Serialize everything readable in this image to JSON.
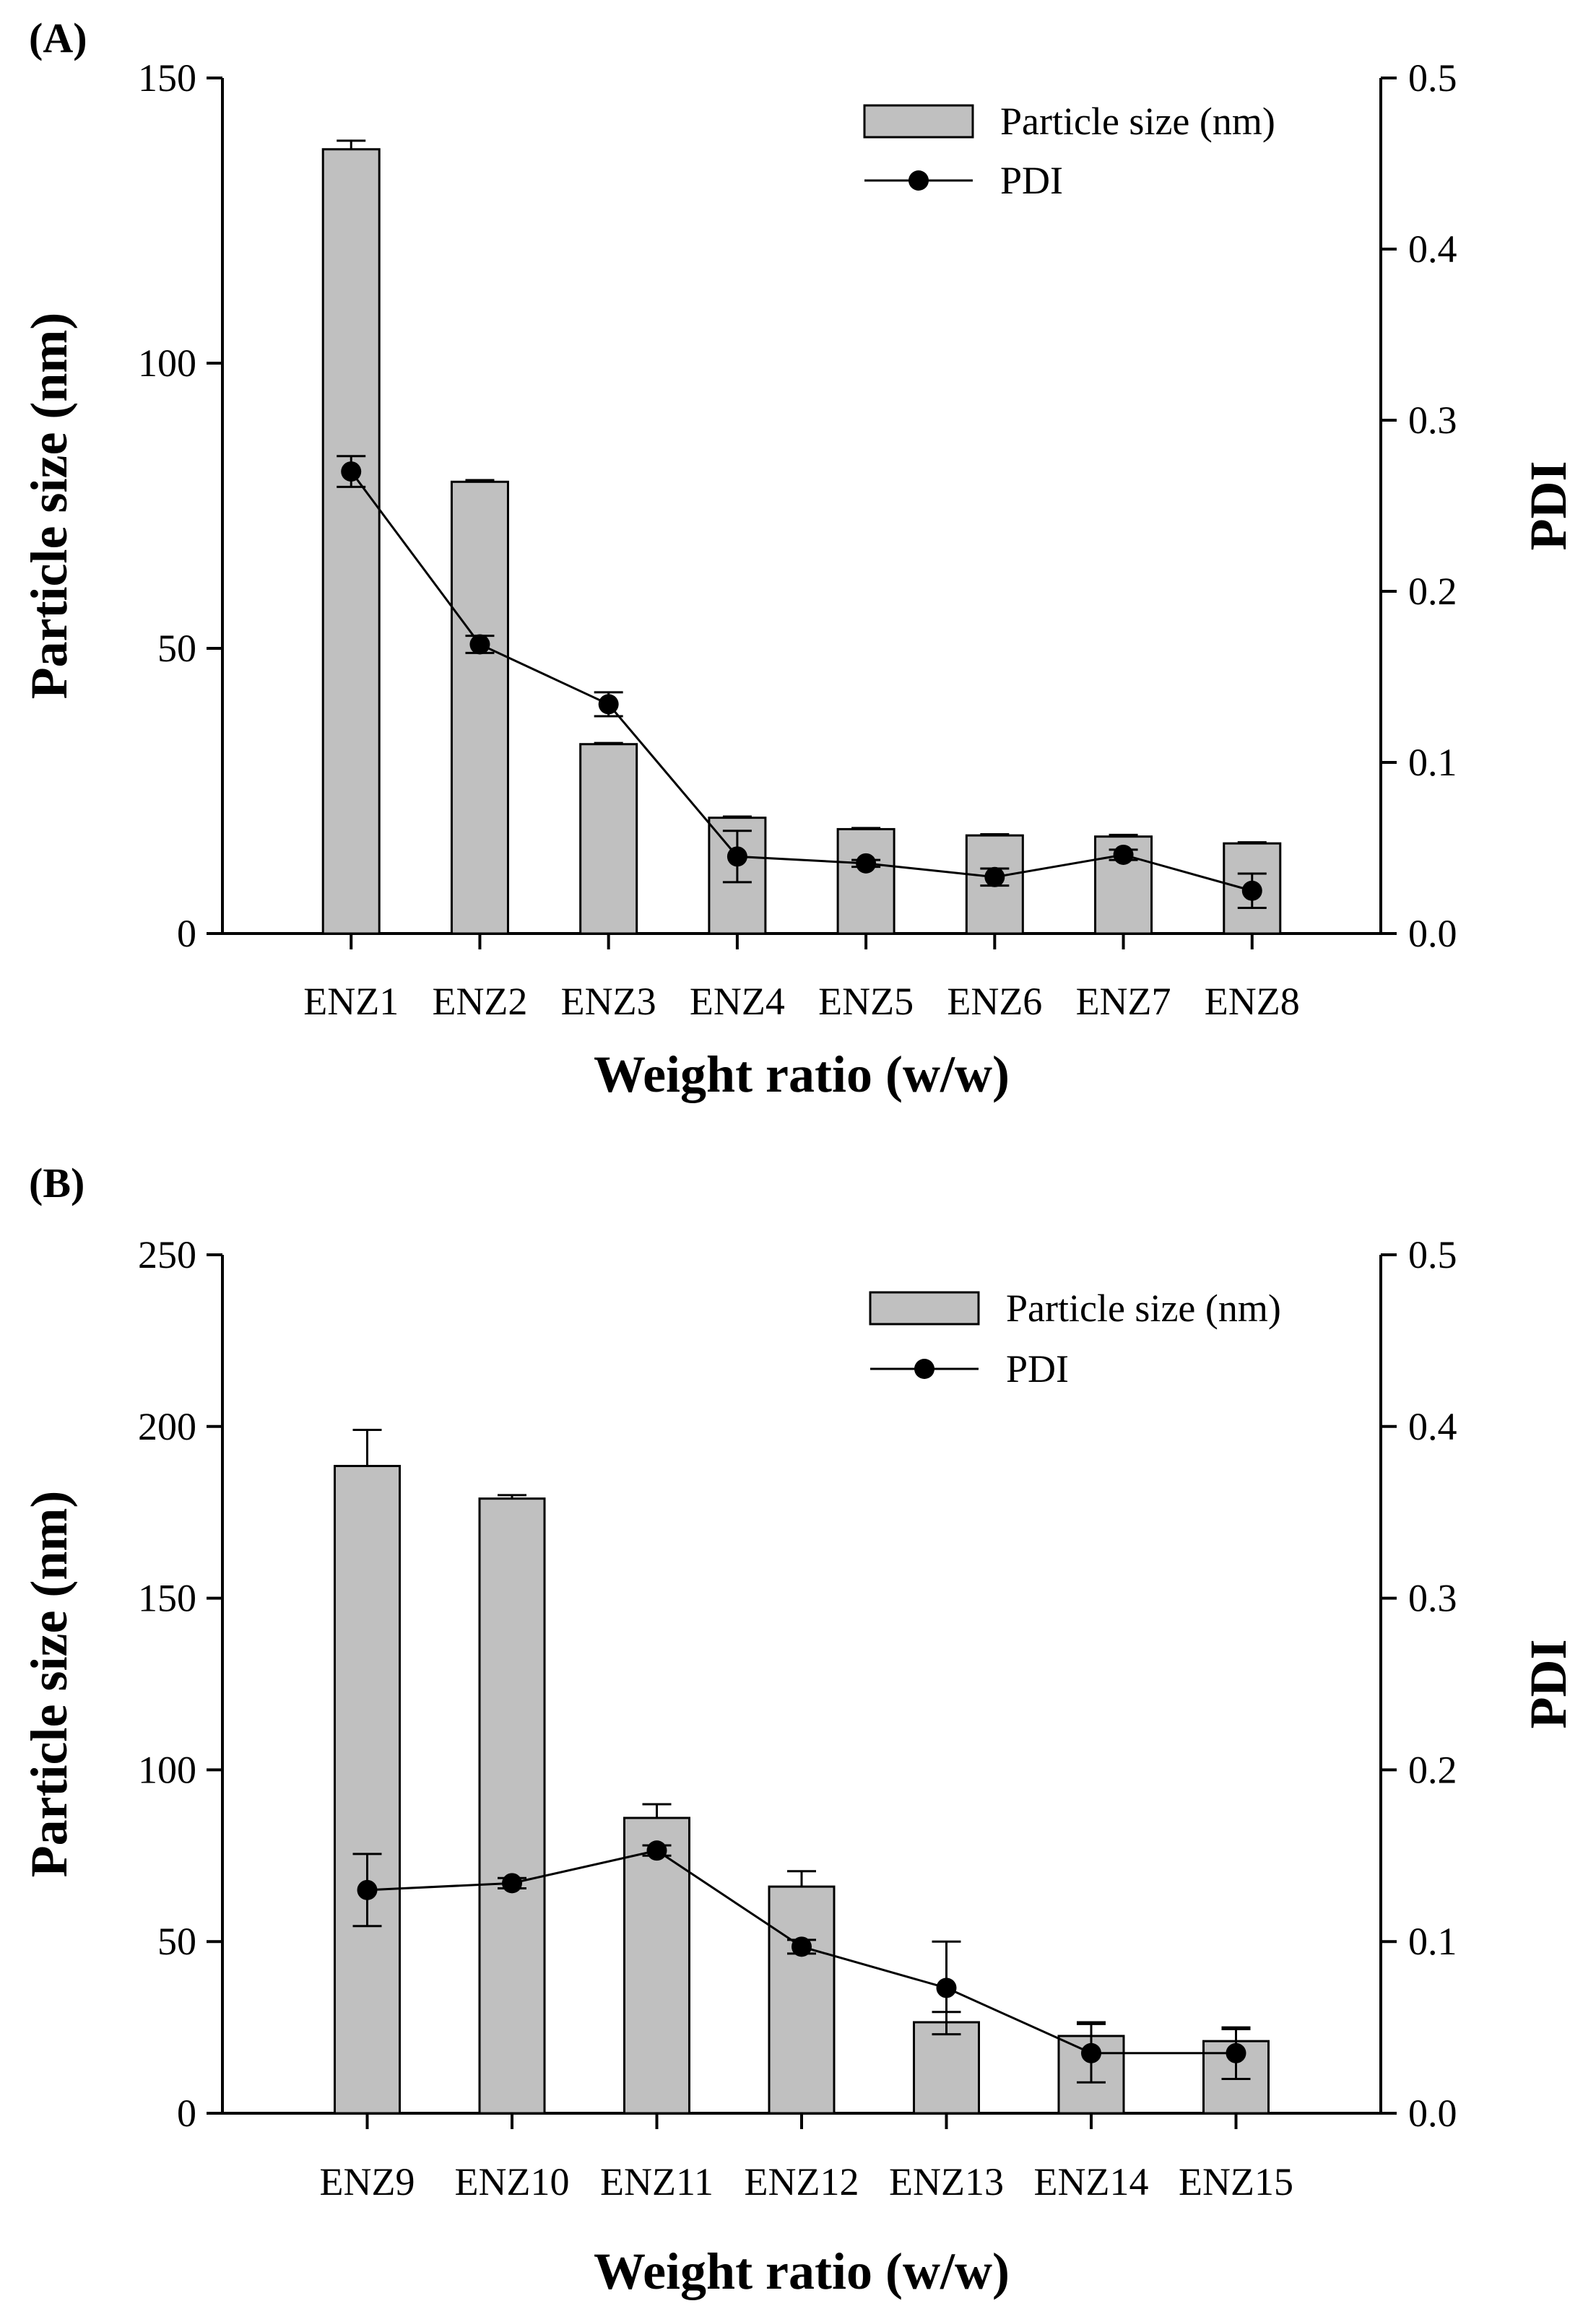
{
  "chart_data": [
    {
      "panel": "(A)",
      "type": "bar",
      "categories": [
        "ENZ1",
        "ENZ2",
        "ENZ3",
        "ENZ4",
        "ENZ5",
        "ENZ6",
        "ENZ7",
        "ENZ8"
      ],
      "xlabel": "Weight ratio (w/w)",
      "ylabel": "Particle size (nm)",
      "y2label": "PDI",
      "ylim": [
        0,
        150
      ],
      "yticks": [
        "0",
        "50",
        "100",
        "150"
      ],
      "y2lim": [
        0,
        0.5
      ],
      "y2ticks": [
        "0.0",
        "0.1",
        "0.2",
        "0.3",
        "0.4",
        "0.5"
      ],
      "legend_position": "top-right",
      "series": [
        {
          "name": "Particle size (nm)",
          "type": "bar",
          "axis": "left",
          "values": [
            137.5,
            79.2,
            33.2,
            20.3,
            18.3,
            17.2,
            17.0,
            15.8
          ],
          "errors": [
            1.5,
            0.3,
            0.2,
            0.2,
            0.2,
            0.2,
            0.3,
            0.2
          ]
        },
        {
          "name": "PDI",
          "type": "line",
          "axis": "right",
          "values": [
            0.27,
            0.169,
            0.134,
            0.045,
            0.041,
            0.033,
            0.046,
            0.025
          ],
          "errors": [
            0.009,
            0.005,
            0.007,
            0.015,
            0.002,
            0.005,
            0.003,
            0.01
          ]
        }
      ]
    },
    {
      "panel": "(B)",
      "type": "bar",
      "categories": [
        "ENZ9",
        "ENZ10",
        "ENZ11",
        "ENZ12",
        "ENZ13",
        "ENZ14",
        "ENZ15"
      ],
      "xlabel": "Weight ratio (w/w)",
      "ylabel": "Particle  size (nm)",
      "y2label": "PDI",
      "ylim": [
        0,
        250
      ],
      "yticks": [
        "0",
        "50",
        "100",
        "150",
        "200",
        "250"
      ],
      "y2lim": [
        0,
        0.5
      ],
      "y2ticks": [
        "0.0",
        "0.1",
        "0.2",
        "0.3",
        "0.4",
        "0.5"
      ],
      "legend_position": "top-right",
      "series": [
        {
          "name": "Particle size (nm)",
          "type": "bar",
          "axis": "left",
          "values": [
            188.5,
            179.0,
            86.0,
            66.0,
            26.5,
            22.5,
            21.0
          ],
          "errors": [
            10.5,
            1.0,
            4.0,
            4.5,
            3.0,
            4.0,
            3.5
          ]
        },
        {
          "name": "PDI",
          "type": "line",
          "axis": "right",
          "values": [
            0.13,
            0.134,
            0.153,
            0.097,
            0.073,
            0.035,
            0.035
          ],
          "errors": [
            0.021,
            0.003,
            0.003,
            0.004,
            0.027,
            0.017,
            0.015
          ]
        }
      ]
    }
  ]
}
